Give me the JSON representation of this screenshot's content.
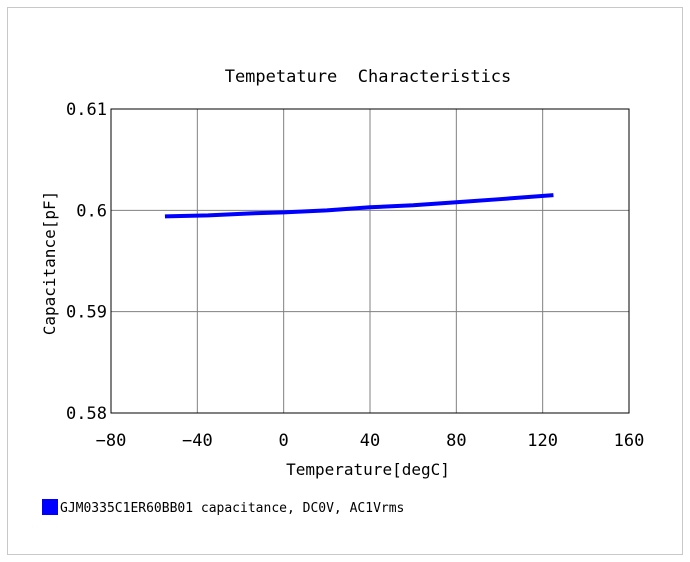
{
  "chart_data": {
    "type": "line",
    "title": "Tempetature  Characteristics",
    "xlabel": "Temperature[degC]",
    "ylabel": "Capacitance[pF]",
    "xlim": [
      -80,
      160
    ],
    "ylim": [
      0.58,
      0.61
    ],
    "x_ticks": [
      -80,
      -40,
      0,
      40,
      80,
      120,
      160
    ],
    "x_tick_labels": [
      "−80",
      "−40",
      "0",
      "40",
      "80",
      "120",
      "160"
    ],
    "y_ticks": [
      0.58,
      0.59,
      0.6,
      0.61
    ],
    "y_tick_labels": [
      "0.58",
      "0.59",
      "0.6",
      "0.61"
    ],
    "grid": true,
    "series": [
      {
        "name": "GJM0335C1ER60BB01 capacitance, DC0V, AC1Vrms",
        "color": "#0000ff",
        "x": [
          -55,
          -35,
          -15,
          0,
          20,
          40,
          60,
          80,
          100,
          125
        ],
        "y": [
          0.5994,
          0.5995,
          0.5997,
          0.5998,
          0.6,
          0.6003,
          0.6005,
          0.6008,
          0.6011,
          0.6015
        ]
      }
    ],
    "legend_position": "bottom-left"
  }
}
